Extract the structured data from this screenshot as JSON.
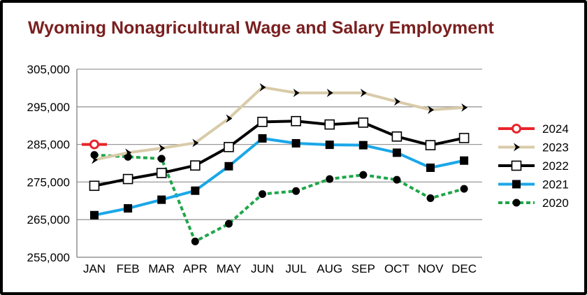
{
  "chart_data": {
    "type": "line",
    "title": "Wyoming Nonagricultural Wage and Salary Employment",
    "xlabel": "",
    "ylabel": "",
    "categories": [
      "JAN",
      "FEB",
      "MAR",
      "APR",
      "MAY",
      "JUN",
      "JUL",
      "AUG",
      "SEP",
      "OCT",
      "NOV",
      "DEC"
    ],
    "ylim": [
      255000,
      305000
    ],
    "yticks": [
      255000,
      265000,
      275000,
      285000,
      295000,
      305000
    ],
    "ytick_labels": [
      "255,000",
      "265,000",
      "275,000",
      "285,000",
      "295,000",
      "305,000"
    ],
    "grid": "horizontal",
    "legend_position": "right",
    "series": [
      {
        "name": "2024",
        "color": "#e8252b",
        "marker": "open-circle",
        "values": [
          285000,
          null,
          null,
          null,
          null,
          null,
          null,
          null,
          null,
          null,
          null,
          null
        ]
      },
      {
        "name": "2023",
        "color": "#d9cba9",
        "marker": "chevron",
        "values": [
          280900,
          282800,
          284000,
          285400,
          291900,
          300200,
          298700,
          298700,
          298700,
          296400,
          294200,
          294800
        ]
      },
      {
        "name": "2022",
        "color": "#000000",
        "marker": "open-square",
        "values": [
          274000,
          275800,
          277400,
          279400,
          284300,
          291000,
          291200,
          290300,
          290800,
          287100,
          284800,
          286700
        ]
      },
      {
        "name": "2021",
        "color": "#1aa7e8",
        "marker": "filled-square",
        "values": [
          266200,
          268000,
          270300,
          272700,
          279200,
          286600,
          285300,
          284900,
          284800,
          282800,
          278800,
          280700
        ]
      },
      {
        "name": "2020",
        "color": "#1fa64a",
        "marker": "filled-circle",
        "dashed": true,
        "values": [
          282200,
          281700,
          281200,
          259200,
          263900,
          271800,
          272600,
          275800,
          276900,
          275600,
          270700,
          273200
        ]
      }
    ]
  }
}
